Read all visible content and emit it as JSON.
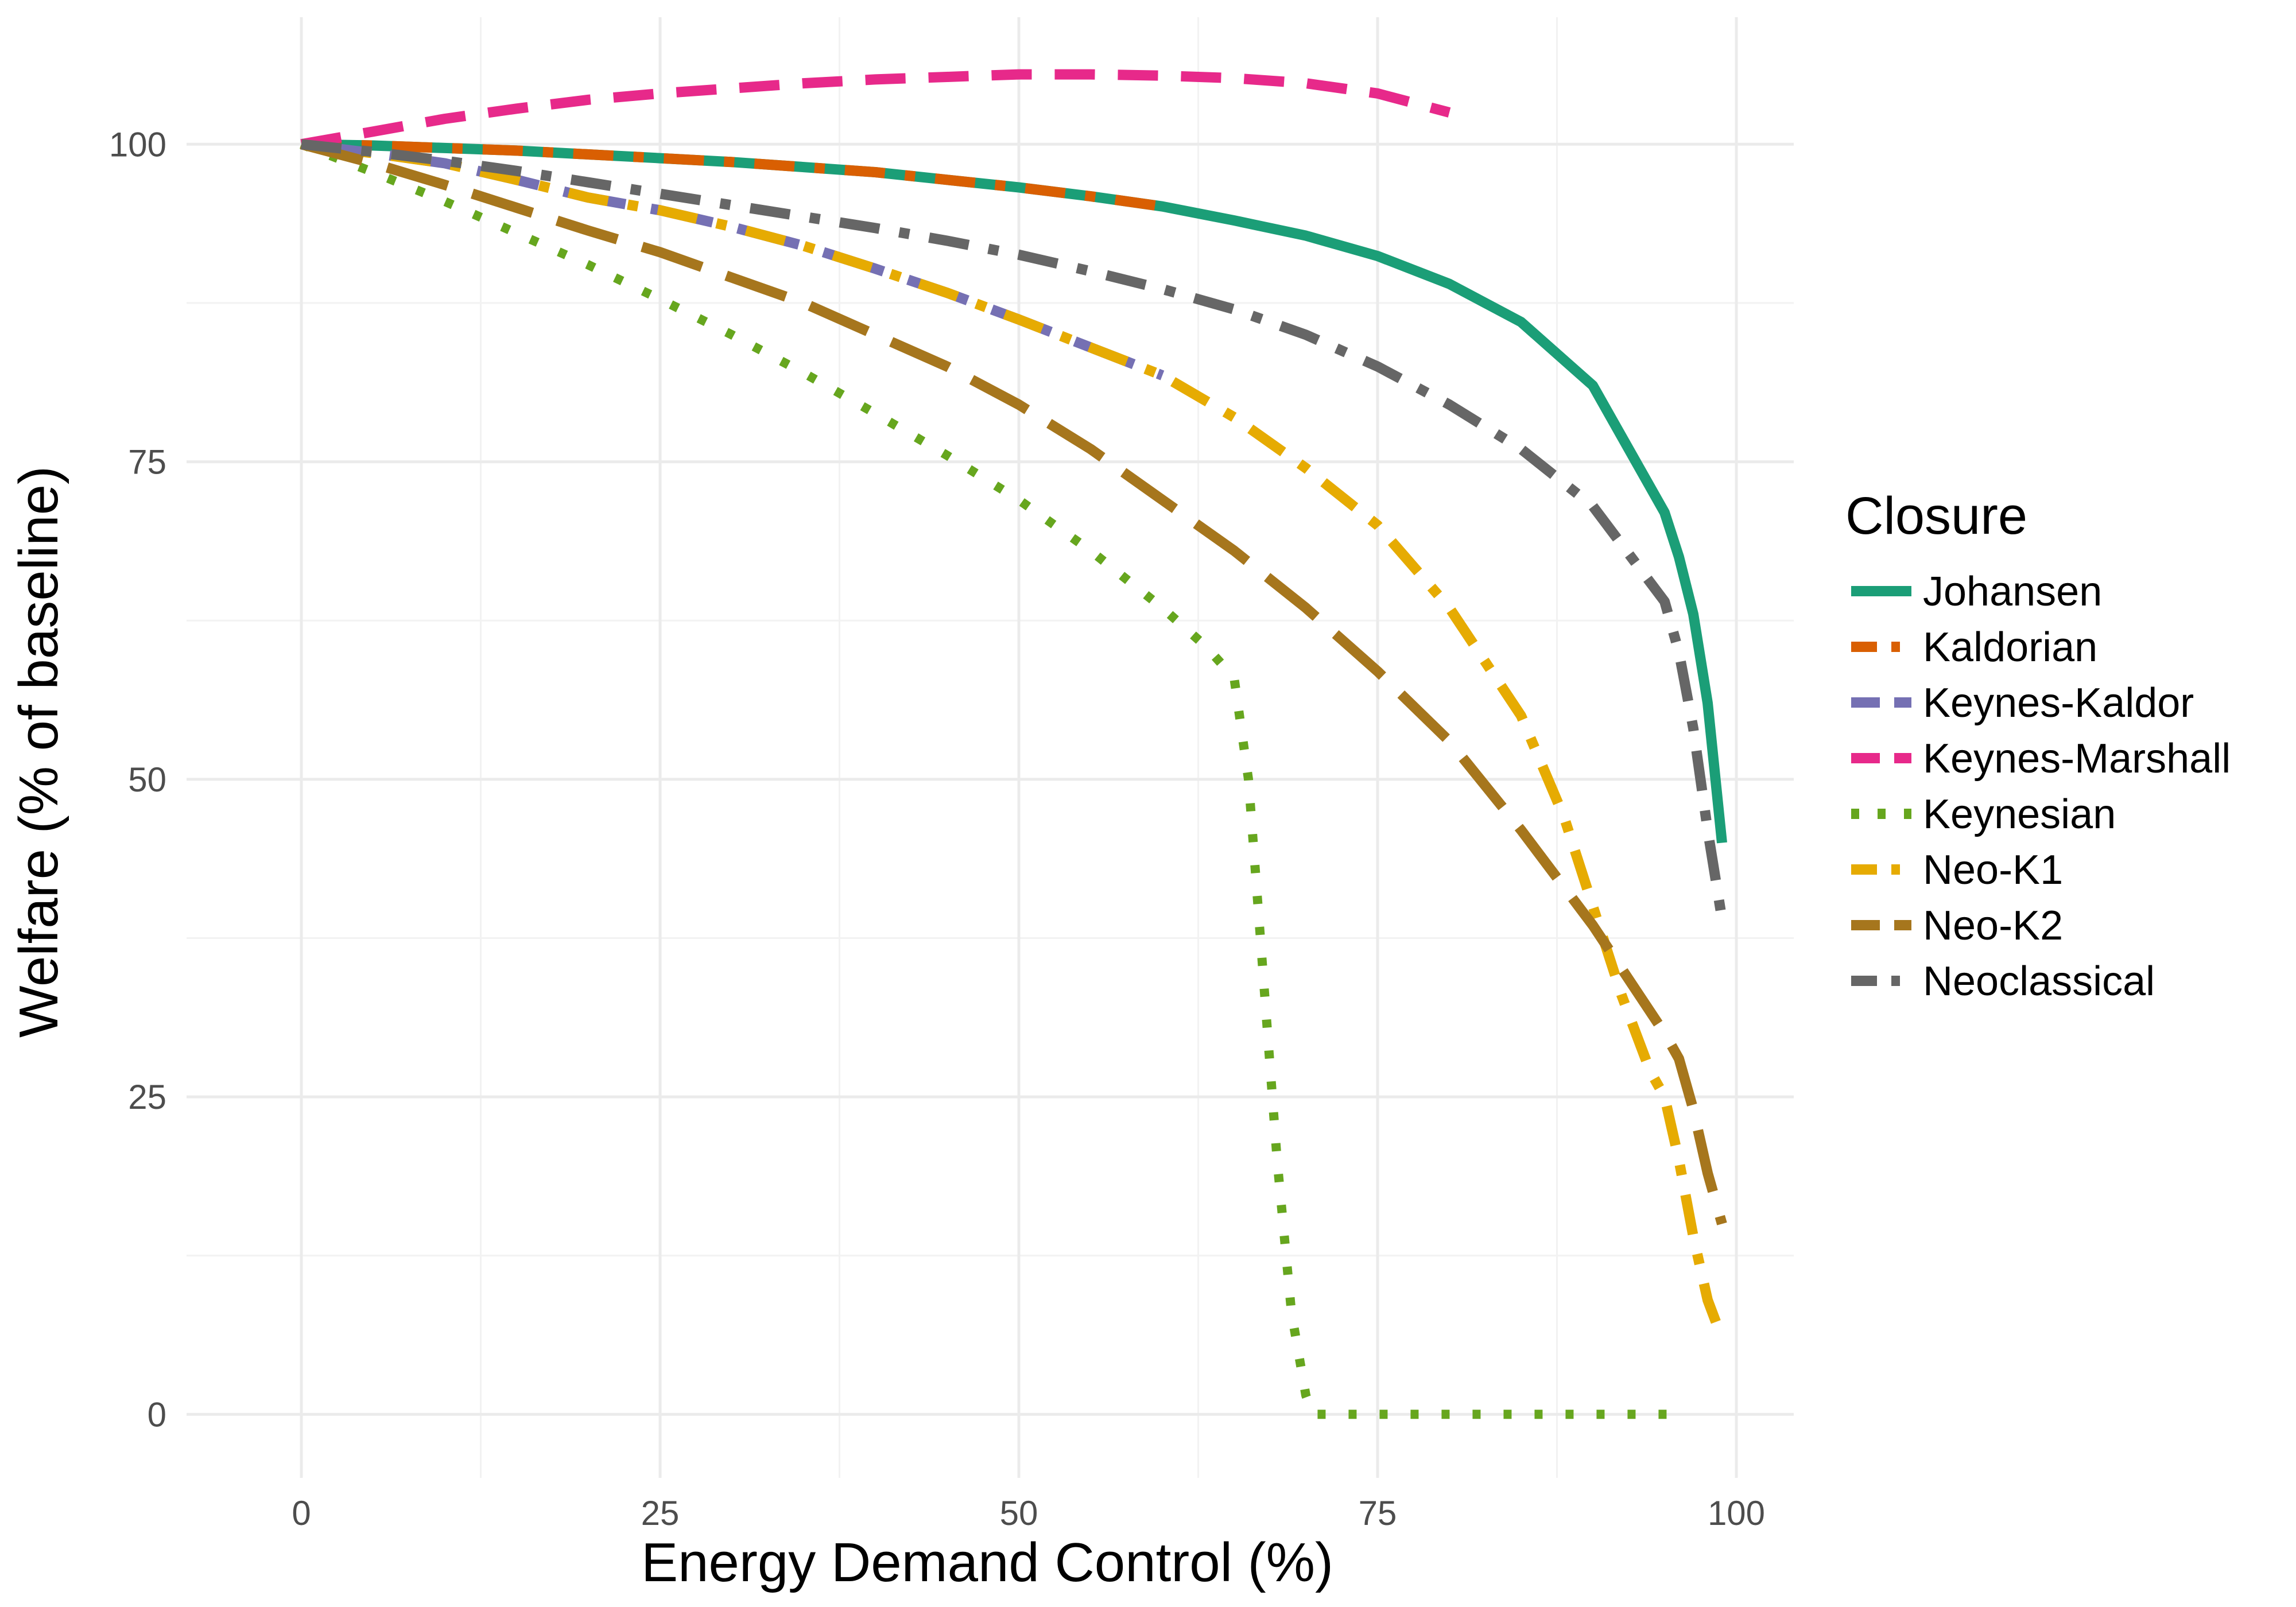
{
  "chart_data": {
    "type": "line",
    "xlabel": "Energy Demand Control (%)",
    "ylabel": "Welfare (% of baseline)",
    "xlim": [
      -8,
      104
    ],
    "ylim": [
      -5,
      110
    ],
    "x_ticks": [
      0,
      25,
      50,
      75,
      100
    ],
    "y_ticks": [
      0,
      25,
      50,
      75,
      100
    ],
    "grid": true,
    "legend": {
      "title": "Closure",
      "position": "right"
    },
    "series": [
      {
        "name": "Johansen",
        "color": "#1B9E77",
        "dash": "solid",
        "points": [
          [
            0,
            100
          ],
          [
            5,
            99.9
          ],
          [
            10,
            99.7
          ],
          [
            15,
            99.5
          ],
          [
            20,
            99.2
          ],
          [
            25,
            98.9
          ],
          [
            30,
            98.6
          ],
          [
            35,
            98.2
          ],
          [
            40,
            97.8
          ],
          [
            45,
            97.2
          ],
          [
            50,
            96.6
          ],
          [
            55,
            95.9
          ],
          [
            60,
            95.1
          ],
          [
            65,
            94
          ],
          [
            70,
            92.8
          ],
          [
            75,
            91.2
          ],
          [
            80,
            89
          ],
          [
            85,
            86
          ],
          [
            90,
            81
          ],
          [
            95,
            71
          ],
          [
            96,
            67.5
          ],
          [
            97,
            63
          ],
          [
            98,
            56
          ],
          [
            99,
            45
          ]
        ]
      },
      {
        "name": "Kaldorian",
        "color": "#D95F02",
        "dash": "dash-dot",
        "points": [
          [
            0,
            100
          ],
          [
            5,
            99.9
          ],
          [
            10,
            99.7
          ],
          [
            15,
            99.5
          ],
          [
            20,
            99.2
          ],
          [
            25,
            98.9
          ],
          [
            30,
            98.6
          ],
          [
            35,
            98.2
          ],
          [
            40,
            97.8
          ],
          [
            45,
            97.2
          ],
          [
            50,
            96.6
          ],
          [
            55,
            95.9
          ],
          [
            60,
            95.1
          ]
        ]
      },
      {
        "name": "Keynes-Kaldor",
        "color": "#7570B3",
        "dash": "long-dash",
        "points": [
          [
            0,
            100
          ],
          [
            5,
            99.3
          ],
          [
            10,
            98.5
          ],
          [
            15,
            97.2
          ],
          [
            20,
            95.8
          ],
          [
            25,
            94.8
          ],
          [
            30,
            93.5
          ],
          [
            35,
            92
          ],
          [
            40,
            90.2
          ],
          [
            45,
            88.3
          ],
          [
            50,
            86.2
          ],
          [
            55,
            84
          ],
          [
            60,
            81.8
          ]
        ]
      },
      {
        "name": "Keynes-Marshall",
        "color": "#E7298A",
        "dash": "dash",
        "points": [
          [
            0,
            100
          ],
          [
            5,
            101
          ],
          [
            10,
            102
          ],
          [
            15,
            102.8
          ],
          [
            20,
            103.5
          ],
          [
            25,
            104
          ],
          [
            30,
            104.4
          ],
          [
            35,
            104.8
          ],
          [
            40,
            105.1
          ],
          [
            45,
            105.3
          ],
          [
            50,
            105.5
          ],
          [
            55,
            105.5
          ],
          [
            60,
            105.4
          ],
          [
            65,
            105.2
          ],
          [
            70,
            104.8
          ],
          [
            75,
            104
          ],
          [
            80,
            102.5
          ]
        ]
      },
      {
        "name": "Keynesian",
        "color": "#66A61E",
        "dash": "dotted",
        "points": [
          [
            0,
            100
          ],
          [
            5,
            97.8
          ],
          [
            10,
            95.5
          ],
          [
            15,
            93
          ],
          [
            20,
            90.5
          ],
          [
            25,
            87.8
          ],
          [
            30,
            85
          ],
          [
            35,
            82
          ],
          [
            40,
            78.8
          ],
          [
            45,
            75.5
          ],
          [
            50,
            72
          ],
          [
            55,
            68
          ],
          [
            60,
            63.5
          ],
          [
            63,
            60.5
          ],
          [
            65,
            58
          ],
          [
            66,
            50
          ],
          [
            67,
            35
          ],
          [
            68,
            20
          ],
          [
            69,
            8
          ],
          [
            70,
            1.5
          ],
          [
            70.5,
            0
          ],
          [
            75,
            0
          ],
          [
            80,
            0
          ],
          [
            85,
            0
          ],
          [
            90,
            0
          ],
          [
            95,
            0
          ],
          [
            96,
            0
          ]
        ]
      },
      {
        "name": "Neo-K1",
        "color": "#E6AB02",
        "dash": "dash-dot",
        "points": [
          [
            0,
            100
          ],
          [
            5,
            99.3
          ],
          [
            10,
            98.5
          ],
          [
            15,
            97.2
          ],
          [
            20,
            95.8
          ],
          [
            25,
            94.8
          ],
          [
            30,
            93.5
          ],
          [
            35,
            92
          ],
          [
            40,
            90.2
          ],
          [
            45,
            88.3
          ],
          [
            50,
            86.2
          ],
          [
            55,
            84
          ],
          [
            60,
            81.8
          ],
          [
            65,
            78.5
          ],
          [
            70,
            74.5
          ],
          [
            75,
            70
          ],
          [
            80,
            63.5
          ],
          [
            85,
            55
          ],
          [
            88,
            47
          ],
          [
            90,
            40
          ],
          [
            92,
            33
          ],
          [
            94,
            27
          ],
          [
            95,
            25
          ],
          [
            96,
            20
          ],
          [
            97,
            14
          ],
          [
            98,
            9
          ],
          [
            99,
            6
          ]
        ]
      },
      {
        "name": "Neo-K2",
        "color": "#A6761D",
        "dash": "long-dash",
        "points": [
          [
            0,
            100
          ],
          [
            5,
            98.5
          ],
          [
            10,
            96.8
          ],
          [
            15,
            95
          ],
          [
            20,
            93.2
          ],
          [
            25,
            91.5
          ],
          [
            30,
            89.5
          ],
          [
            35,
            87.5
          ],
          [
            40,
            85
          ],
          [
            45,
            82.5
          ],
          [
            50,
            79.5
          ],
          [
            55,
            76
          ],
          [
            60,
            72
          ],
          [
            65,
            68
          ],
          [
            70,
            63.5
          ],
          [
            75,
            58.5
          ],
          [
            80,
            53
          ],
          [
            85,
            46
          ],
          [
            90,
            38.5
          ],
          [
            95,
            30
          ],
          [
            96,
            28
          ],
          [
            97,
            24
          ],
          [
            98,
            19
          ],
          [
            99,
            15
          ]
        ]
      },
      {
        "name": "Neoclassical",
        "color": "#666666",
        "dash": "dash-dot",
        "points": [
          [
            0,
            100
          ],
          [
            5,
            99.4
          ],
          [
            10,
            98.7
          ],
          [
            15,
            97.9
          ],
          [
            20,
            97
          ],
          [
            25,
            96.1
          ],
          [
            30,
            95.2
          ],
          [
            35,
            94.3
          ],
          [
            40,
            93.4
          ],
          [
            45,
            92.4
          ],
          [
            50,
            91.3
          ],
          [
            55,
            90
          ],
          [
            60,
            88.6
          ],
          [
            65,
            87
          ],
          [
            70,
            85
          ],
          [
            75,
            82.5
          ],
          [
            80,
            79.5
          ],
          [
            85,
            76
          ],
          [
            90,
            71.5
          ],
          [
            95,
            64
          ],
          [
            96,
            60
          ],
          [
            97,
            54
          ],
          [
            98,
            46
          ],
          [
            99,
            39
          ]
        ]
      }
    ]
  }
}
